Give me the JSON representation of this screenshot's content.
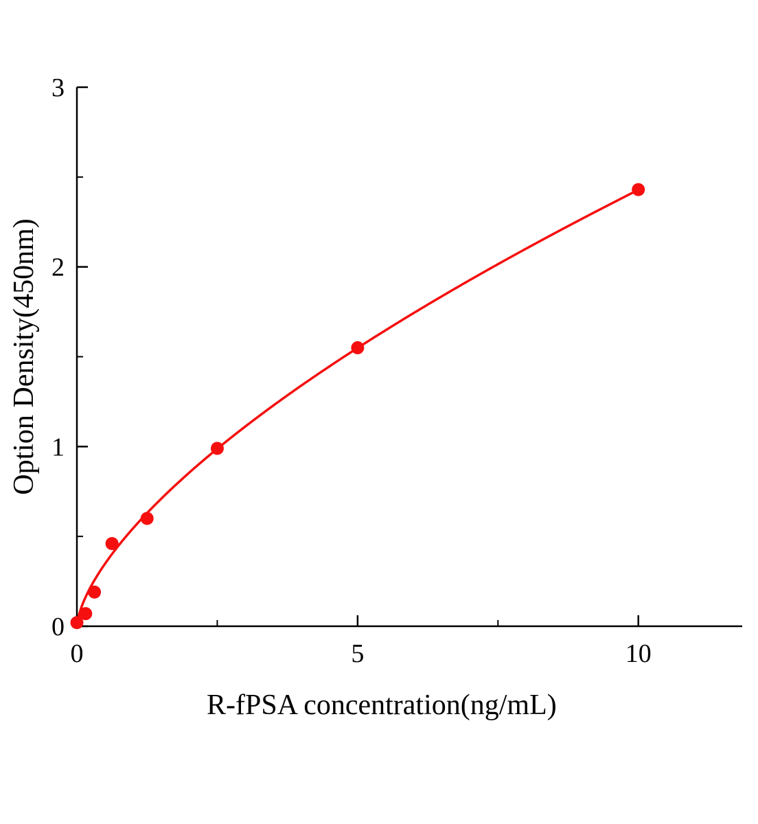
{
  "page": {
    "background": "#ffffff"
  },
  "chart_data": {
    "type": "scatter",
    "title": "",
    "xlabel": "R-fPSA concentration(ng/mL)",
    "ylabel": "Option Density(450nm)",
    "xlim": [
      0,
      11.85
    ],
    "ylim": [
      0,
      3
    ],
    "x_major_ticks": [
      0,
      5,
      10
    ],
    "x_minor_ticks": [
      2.5,
      7.5
    ],
    "y_major_ticks": [
      0,
      1,
      2,
      3
    ],
    "y_minor_ticks": [
      0.5,
      1.5,
      2.5
    ],
    "grid": false,
    "legend": "none",
    "marker_color": "#f50f0f",
    "line_color": "#f50f0f",
    "axis_color": "#000000",
    "points": [
      {
        "x": 0,
        "y": 0.02
      },
      {
        "x": 0.156,
        "y": 0.07
      },
      {
        "x": 0.313,
        "y": 0.19
      },
      {
        "x": 0.625,
        "y": 0.46
      },
      {
        "x": 1.25,
        "y": 0.6
      },
      {
        "x": 2.5,
        "y": 0.99
      },
      {
        "x": 5,
        "y": 1.55
      },
      {
        "x": 10,
        "y": 2.43
      }
    ],
    "fit": {
      "type": "power",
      "a": 0.545,
      "b": 0.649,
      "x_start": 0,
      "x_end": 10
    }
  }
}
